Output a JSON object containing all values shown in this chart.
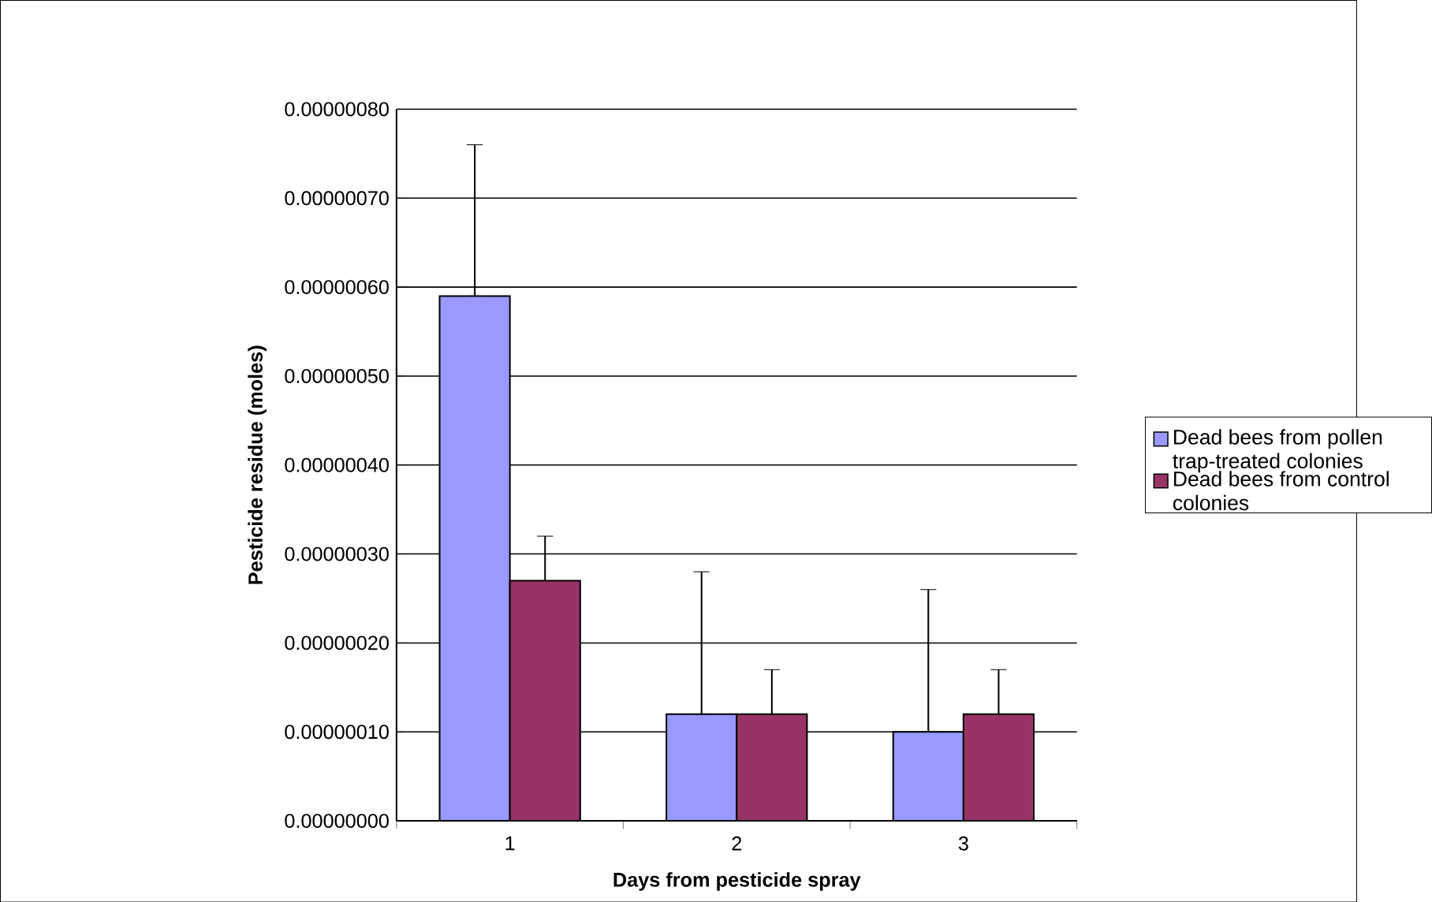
{
  "chart_data": {
    "type": "bar",
    "xlabel": "Days from pesticide spray",
    "ylabel": "Pesticide residue (moles)",
    "categories": [
      "1",
      "2",
      "3"
    ],
    "series": [
      {
        "name": "Dead bees from pollen trap-treated colonies",
        "color": "#9999ff",
        "values": [
          5.9e-07,
          1.2e-07,
          1e-07
        ],
        "errors": [
          [
            5.9e-07,
            7.6e-07
          ],
          [
            1.2e-07,
            2.8e-07
          ],
          [
            1e-07,
            2.6e-07
          ]
        ]
      },
      {
        "name": "Dead bees from control colonies",
        "color": "#993366",
        "values": [
          2.7e-07,
          1.2e-07,
          1.2e-07
        ],
        "errors": [
          [
            2.7e-07,
            3.2e-07
          ],
          [
            1.2e-07,
            1.7e-07
          ],
          [
            1.2e-07,
            1.7e-07
          ]
        ]
      }
    ],
    "ylim": [
      0,
      8e-07
    ],
    "yticks": [
      {
        "value": 0,
        "label": "0.00000000"
      },
      {
        "value": 1e-07,
        "label": "0.00000010"
      },
      {
        "value": 2e-07,
        "label": "0.00000020"
      },
      {
        "value": 3e-07,
        "label": "0.00000030"
      },
      {
        "value": 4e-07,
        "label": "0.00000040"
      },
      {
        "value": 5e-07,
        "label": "0.00000050"
      },
      {
        "value": 6e-07,
        "label": "0.00000060"
      },
      {
        "value": 7e-07,
        "label": "0.00000070"
      },
      {
        "value": 8e-07,
        "label": "0.00000080"
      }
    ],
    "grid": "y",
    "legend": "right"
  }
}
